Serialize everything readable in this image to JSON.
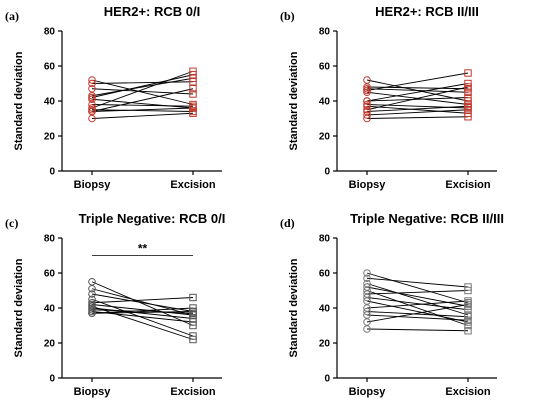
{
  "chart_data": [
    {
      "type": "scatter",
      "letter": "(a)",
      "title": "HER2+: RCB 0/I",
      "ylabel": "Standard deviation",
      "categories": [
        "Biopsy",
        "Excision"
      ],
      "ylim": [
        0,
        80
      ],
      "yticks": [
        0,
        20,
        40,
        60,
        80
      ],
      "marker_color": "#c0392b",
      "pairs": [
        [
          52,
          38
        ],
        [
          50,
          51
        ],
        [
          47,
          44
        ],
        [
          43,
          53
        ],
        [
          42,
          55
        ],
        [
          41,
          36
        ],
        [
          38,
          37
        ],
        [
          36,
          57
        ],
        [
          35,
          34
        ],
        [
          34,
          47
        ],
        [
          34,
          36
        ],
        [
          30,
          33
        ]
      ],
      "significance": null
    },
    {
      "type": "scatter",
      "letter": "(b)",
      "title": "HER2+: RCB II/III",
      "ylabel": "Standard deviation",
      "categories": [
        "Biopsy",
        "Excision"
      ],
      "ylim": [
        0,
        80
      ],
      "yticks": [
        0,
        20,
        40,
        60,
        80
      ],
      "marker_color": "#c0392b",
      "pairs": [
        [
          52,
          40
        ],
        [
          48,
          47
        ],
        [
          47,
          45
        ],
        [
          46,
          56
        ],
        [
          45,
          38
        ],
        [
          40,
          50
        ],
        [
          40,
          42
        ],
        [
          38,
          36
        ],
        [
          37,
          33
        ],
        [
          35,
          48
        ],
        [
          34,
          37
        ],
        [
          32,
          35
        ],
        [
          30,
          31
        ]
      ],
      "significance": null
    },
    {
      "type": "scatter",
      "letter": "(c)",
      "title": "Triple Negative: RCB 0/I",
      "ylabel": "Standard deviation",
      "categories": [
        "Biopsy",
        "Excision"
      ],
      "ylim": [
        0,
        80
      ],
      "yticks": [
        0,
        20,
        40,
        60,
        80
      ],
      "marker_color": "#555555",
      "pairs": [
        [
          55,
          30
        ],
        [
          51,
          36
        ],
        [
          48,
          38
        ],
        [
          45,
          24
        ],
        [
          43,
          46
        ],
        [
          42,
          36
        ],
        [
          41,
          22
        ],
        [
          40,
          34
        ],
        [
          39,
          37
        ],
        [
          38,
          32
        ],
        [
          37,
          38
        ],
        [
          37,
          40
        ]
      ],
      "significance": {
        "label": "**",
        "y": 70
      }
    },
    {
      "type": "scatter",
      "letter": "(d)",
      "title": "Triple Negative: RCB II/III",
      "ylabel": "Standard deviation",
      "categories": [
        "Biopsy",
        "Excision"
      ],
      "ylim": [
        0,
        80
      ],
      "yticks": [
        0,
        20,
        40,
        60,
        80
      ],
      "marker_color": "#777777",
      "pairs": [
        [
          60,
          43
        ],
        [
          57,
          52
        ],
        [
          54,
          36
        ],
        [
          52,
          41
        ],
        [
          50,
          30
        ],
        [
          48,
          50
        ],
        [
          46,
          39
        ],
        [
          44,
          32
        ],
        [
          40,
          44
        ],
        [
          38,
          35
        ],
        [
          36,
          33
        ],
        [
          32,
          42
        ],
        [
          28,
          27
        ]
      ],
      "significance": null
    }
  ]
}
